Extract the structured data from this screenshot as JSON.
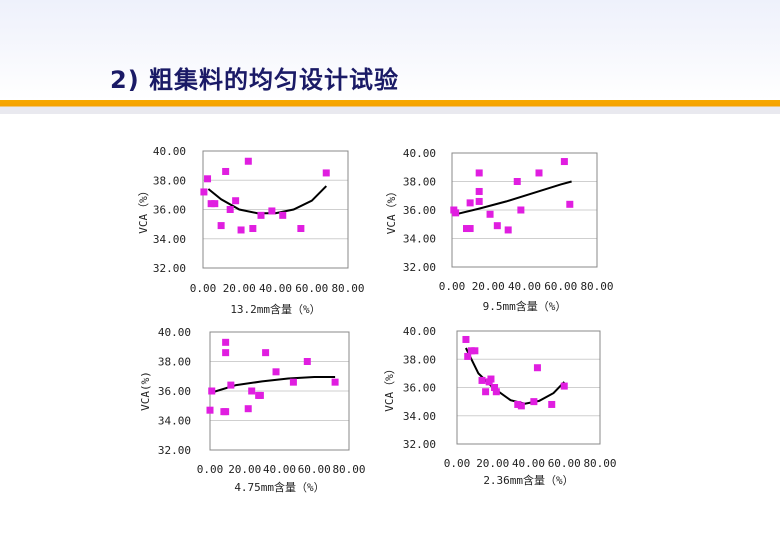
{
  "page": {
    "title": "2) 粗集料的均匀设计试验"
  },
  "colors": {
    "marker": "#e01ee0",
    "trend": "#000000",
    "grid": "#cfcfcf",
    "accent": "#f5a100"
  },
  "chart_data": [
    {
      "type": "scatter",
      "xlabel": "13.2mm含量（%）",
      "ylabel": "VCA（%）",
      "xlim": [
        0,
        80
      ],
      "ylim": [
        32,
        40
      ],
      "xticks": [
        "0.00",
        "20.00",
        "40.00",
        "60.00",
        "80.00"
      ],
      "yticks": [
        "32.00",
        "34.00",
        "36.00",
        "38.00",
        "40.00"
      ],
      "points": [
        [
          0.5,
          37.2
        ],
        [
          2.5,
          38.1
        ],
        [
          4.5,
          36.4
        ],
        [
          6.5,
          36.4
        ],
        [
          10,
          34.9
        ],
        [
          12.5,
          38.6
        ],
        [
          15,
          36.0
        ],
        [
          18,
          36.6
        ],
        [
          21,
          34.6
        ],
        [
          25,
          39.3
        ],
        [
          27.5,
          34.7
        ],
        [
          32,
          35.6
        ],
        [
          38,
          35.9
        ],
        [
          44,
          35.6
        ],
        [
          54,
          34.7
        ],
        [
          68,
          38.5
        ]
      ],
      "trend": [
        [
          3,
          37.4
        ],
        [
          10,
          36.7
        ],
        [
          20,
          36.0
        ],
        [
          30,
          35.75
        ],
        [
          40,
          35.75
        ],
        [
          50,
          36.0
        ],
        [
          60,
          36.6
        ],
        [
          68,
          37.6
        ]
      ]
    },
    {
      "type": "scatter",
      "xlabel": "9.5mm含量（%）",
      "ylabel": "VCA（%）",
      "xlim": [
        0,
        80
      ],
      "ylim": [
        32,
        40
      ],
      "xticks": [
        "0.00",
        "20.00",
        "40.00",
        "60.00",
        "80.00"
      ],
      "yticks": [
        "32.00",
        "34.00",
        "36.00",
        "38.00",
        "40.00"
      ],
      "points": [
        [
          1,
          36.0
        ],
        [
          2,
          35.8
        ],
        [
          8,
          34.7
        ],
        [
          10,
          34.7
        ],
        [
          10,
          36.5
        ],
        [
          15,
          38.6
        ],
        [
          15,
          37.3
        ],
        [
          15,
          36.6
        ],
        [
          21,
          35.7
        ],
        [
          25,
          34.9
        ],
        [
          31,
          34.6
        ],
        [
          36,
          38.0
        ],
        [
          38,
          36.0
        ],
        [
          48,
          38.6
        ],
        [
          62,
          39.4
        ],
        [
          65,
          36.4
        ]
      ],
      "trend": [
        [
          2,
          35.7
        ],
        [
          15,
          36.1
        ],
        [
          30,
          36.6
        ],
        [
          45,
          37.2
        ],
        [
          60,
          37.8
        ],
        [
          66,
          38.0
        ]
      ]
    },
    {
      "type": "scatter",
      "xlabel": "4.75mm含量（%）",
      "ylabel": "VCA(%)",
      "xlim": [
        0,
        80
      ],
      "ylim": [
        32,
        40
      ],
      "xticks": [
        "0.00",
        "20.00",
        "40.00",
        "60.00",
        "80.00"
      ],
      "yticks": [
        "32.00",
        "34.00",
        "36.00",
        "38.00",
        "40.00"
      ],
      "points": [
        [
          0,
          34.7
        ],
        [
          1,
          36.0
        ],
        [
          8,
          34.6
        ],
        [
          9,
          34.6
        ],
        [
          9,
          39.3
        ],
        [
          9,
          38.6
        ],
        [
          12,
          36.4
        ],
        [
          22,
          34.8
        ],
        [
          24,
          36.0
        ],
        [
          28,
          35.7
        ],
        [
          29,
          35.7
        ],
        [
          32,
          38.6
        ],
        [
          38,
          37.3
        ],
        [
          48,
          36.6
        ],
        [
          56,
          38.0
        ],
        [
          72,
          36.6
        ]
      ],
      "trend": [
        [
          1,
          35.9
        ],
        [
          15,
          36.4
        ],
        [
          30,
          36.65
        ],
        [
          45,
          36.85
        ],
        [
          60,
          36.95
        ],
        [
          72,
          36.95
        ]
      ]
    },
    {
      "type": "scatter",
      "xlabel": "2.36mm含量（%）",
      "ylabel": "VCA（%）",
      "xlim": [
        0,
        80
      ],
      "ylim": [
        32,
        40
      ],
      "xticks": [
        "0.00",
        "20.00",
        "40.00",
        "60.00",
        "80.00"
      ],
      "yticks": [
        "32.00",
        "34.00",
        "36.00",
        "38.00",
        "40.00"
      ],
      "points": [
        [
          5,
          39.4
        ],
        [
          6,
          38.2
        ],
        [
          8,
          38.6
        ],
        [
          10,
          38.6
        ],
        [
          14,
          36.5
        ],
        [
          16,
          35.7
        ],
        [
          18,
          36.4
        ],
        [
          19,
          36.6
        ],
        [
          21,
          36.0
        ],
        [
          22,
          35.7
        ],
        [
          34,
          34.8
        ],
        [
          36,
          34.7
        ],
        [
          43,
          35.0
        ],
        [
          45,
          37.4
        ],
        [
          53,
          34.8
        ],
        [
          60,
          36.1
        ]
      ],
      "trend": [
        [
          5,
          38.8
        ],
        [
          12,
          37.0
        ],
        [
          20,
          36.0
        ],
        [
          30,
          35.1
        ],
        [
          38,
          34.85
        ],
        [
          46,
          35.05
        ],
        [
          54,
          35.6
        ],
        [
          60,
          36.4
        ]
      ]
    }
  ]
}
